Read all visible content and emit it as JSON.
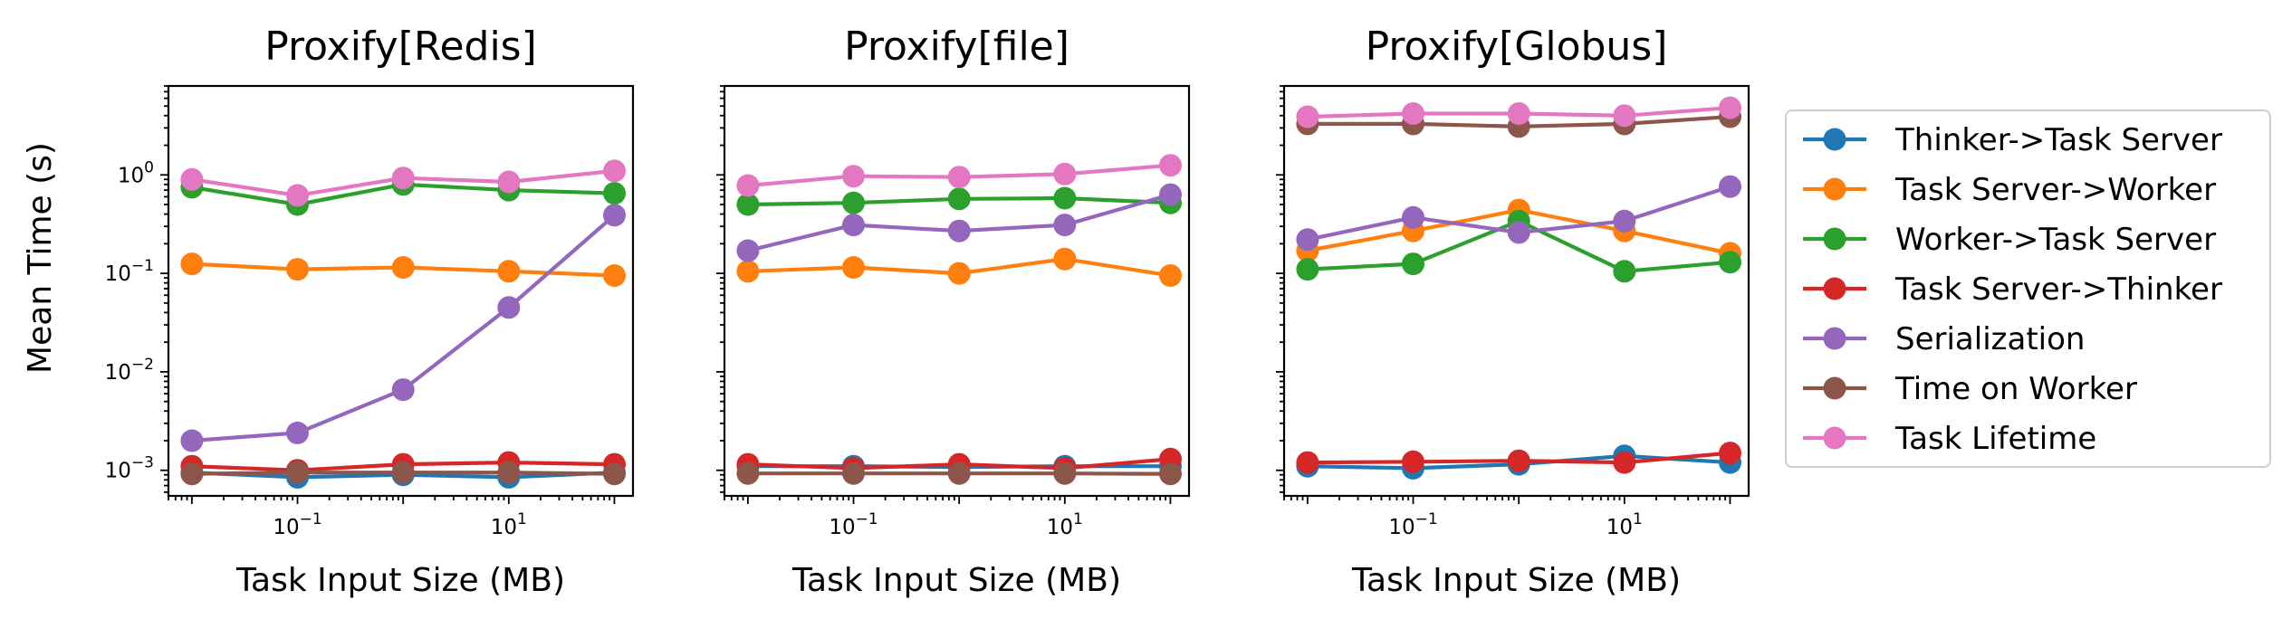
{
  "chart_data": {
    "type": "line",
    "ylabel": "Mean Time (s)",
    "yscale": "log",
    "xscale": "log",
    "ylim": [
      0.00055,
      8
    ],
    "xlim": [
      0.006,
      150
    ],
    "x": [
      0.01,
      0.1,
      1,
      10,
      100
    ],
    "x_ticks": [
      {
        "value": 0.1,
        "base": "10",
        "exp": "−1"
      },
      {
        "value": 10,
        "base": "10",
        "exp": "1"
      }
    ],
    "y_ticks": [
      {
        "value": 0.001,
        "base": "10",
        "exp": "−3"
      },
      {
        "value": 0.01,
        "base": "10",
        "exp": "−2"
      },
      {
        "value": 0.1,
        "base": "10",
        "exp": "−1"
      },
      {
        "value": 1,
        "base": "10",
        "exp": "0"
      }
    ],
    "legend": {
      "position": "right"
    },
    "series_meta": [
      {
        "name": "Thinker->Task Server",
        "color": "#1f77b4"
      },
      {
        "name": "Task Server->Worker",
        "color": "#ff7f0e"
      },
      {
        "name": "Worker->Task Server",
        "color": "#2ca02c"
      },
      {
        "name": "Task Server->Thinker",
        "color": "#d62728"
      },
      {
        "name": "Serialization",
        "color": "#9467bd"
      },
      {
        "name": "Time on Worker",
        "color": "#8c564b"
      },
      {
        "name": "Task Lifetime",
        "color": "#e377c2"
      }
    ],
    "panels": [
      {
        "title": "Proxify[Redis]",
        "xlabel": "Task Input Size (MB)",
        "series": [
          {
            "name": "Thinker->Task Server",
            "values": [
              0.00095,
              0.00085,
              0.0009,
              0.00085,
              0.00095
            ]
          },
          {
            "name": "Task Server->Worker",
            "values": [
              0.125,
              0.11,
              0.115,
              0.105,
              0.095
            ]
          },
          {
            "name": "Worker->Task Server",
            "values": [
              0.75,
              0.5,
              0.8,
              0.7,
              0.65
            ]
          },
          {
            "name": "Task Server->Thinker",
            "values": [
              0.0011,
              0.001,
              0.00115,
              0.0012,
              0.00115
            ]
          },
          {
            "name": "Serialization",
            "values": [
              0.002,
              0.0024,
              0.0066,
              0.045,
              0.39
            ]
          },
          {
            "name": "Time on Worker",
            "values": [
              0.00092,
              0.00095,
              0.00095,
              0.00095,
              0.00092
            ]
          },
          {
            "name": "Task Lifetime",
            "values": [
              0.9,
              0.62,
              0.93,
              0.85,
              1.1
            ]
          }
        ]
      },
      {
        "title": "Proxify[file]",
        "xlabel": "Task Input Size (MB)",
        "series": [
          {
            "name": "Thinker->Task Server",
            "values": [
              0.0011,
              0.0011,
              0.00108,
              0.0011,
              0.0011
            ]
          },
          {
            "name": "Task Server->Worker",
            "values": [
              0.105,
              0.115,
              0.1,
              0.14,
              0.095
            ]
          },
          {
            "name": "Worker->Task Server",
            "values": [
              0.5,
              0.52,
              0.57,
              0.58,
              0.52
            ]
          },
          {
            "name": "Task Server->Thinker",
            "values": [
              0.00115,
              0.00105,
              0.00115,
              0.00105,
              0.0013
            ]
          },
          {
            "name": "Serialization",
            "values": [
              0.17,
              0.31,
              0.27,
              0.31,
              0.63
            ]
          },
          {
            "name": "Time on Worker",
            "values": [
              0.00093,
              0.00093,
              0.00093,
              0.00093,
              0.00092
            ]
          },
          {
            "name": "Task Lifetime",
            "values": [
              0.78,
              0.97,
              0.95,
              1.02,
              1.25
            ]
          }
        ]
      },
      {
        "title": "Proxify[Globus]",
        "xlabel": "Task Input Size (MB)",
        "series": [
          {
            "name": "Thinker->Task Server",
            "values": [
              0.0011,
              0.00105,
              0.00115,
              0.0014,
              0.0012
            ]
          },
          {
            "name": "Task Server->Worker",
            "values": [
              0.17,
              0.27,
              0.44,
              0.27,
              0.16
            ]
          },
          {
            "name": "Worker->Task Server",
            "values": [
              0.11,
              0.125,
              0.34,
              0.105,
              0.13
            ]
          },
          {
            "name": "Task Server->Thinker",
            "values": [
              0.0012,
              0.00122,
              0.00125,
              0.0012,
              0.0015
            ]
          },
          {
            "name": "Serialization",
            "values": [
              0.22,
              0.37,
              0.26,
              0.34,
              0.76
            ]
          },
          {
            "name": "Time on Worker",
            "values": [
              3.3,
              3.3,
              3.1,
              3.3,
              3.9
            ]
          },
          {
            "name": "Task Lifetime",
            "values": [
              3.9,
              4.2,
              4.2,
              4.0,
              4.8
            ]
          }
        ]
      }
    ]
  }
}
